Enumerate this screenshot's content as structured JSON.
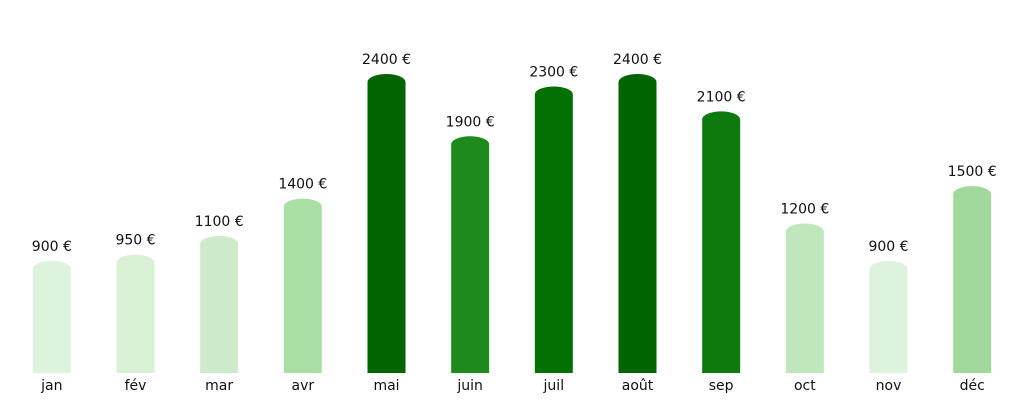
{
  "chart_data": {
    "type": "bar",
    "categories": [
      "jan",
      "fév",
      "mar",
      "avr",
      "mai",
      "juin",
      "juil",
      "août",
      "sep",
      "oct",
      "nov",
      "déc"
    ],
    "values": [
      900,
      950,
      1100,
      1400,
      2400,
      1900,
      2300,
      2400,
      2100,
      1200,
      900,
      1500
    ],
    "value_labels": [
      "900 €",
      "950 €",
      "1100 €",
      "1400 €",
      "2400 €",
      "1900 €",
      "2300 €",
      "2400 €",
      "2100 €",
      "1200 €",
      "900 €",
      "1500 €"
    ],
    "colors": [
      "#ddf3dd",
      "#d8f1d5",
      "#cdebca",
      "#a9dea4",
      "#006400",
      "#1e8a1e",
      "#037003",
      "#006400",
      "#0e7a0e",
      "#c0e6bc",
      "#ddf3dd",
      "#a0d99b"
    ]
  }
}
